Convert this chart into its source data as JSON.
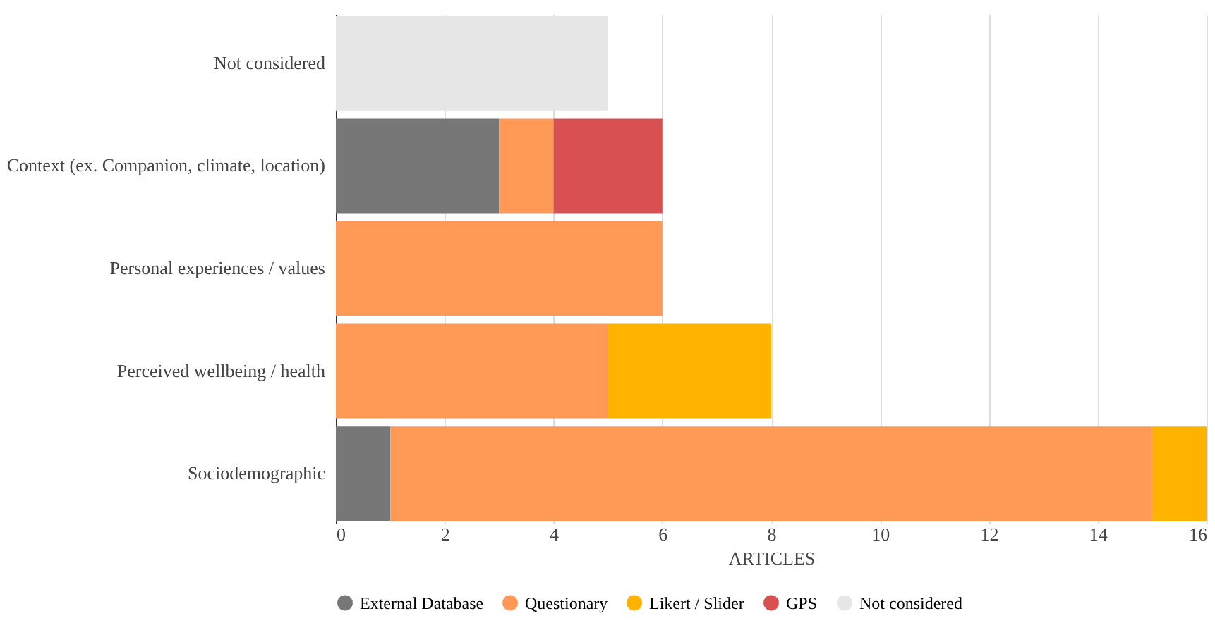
{
  "chart_data": {
    "type": "bar",
    "orientation": "horizontal",
    "stacked": true,
    "xlabel": "ARTICLES",
    "categories": [
      "Not considered",
      "Context (ex. Companion, climate, location)",
      "Personal experiences / values",
      "Perceived wellbeing / health",
      "Sociodemographic"
    ],
    "series": [
      {
        "name": "External Database",
        "color": "#777777",
        "values": [
          null,
          3,
          null,
          null,
          1
        ]
      },
      {
        "name": "Questionary",
        "color": "#ff9955",
        "values": [
          null,
          1,
          6,
          5,
          14
        ]
      },
      {
        "name": "Likert / Slider",
        "color": "#ffb300",
        "values": [
          null,
          null,
          null,
          3,
          1
        ]
      },
      {
        "name": "GPS",
        "color": "#d95050",
        "values": [
          null,
          2,
          null,
          null,
          null
        ]
      },
      {
        "name": "Not considered",
        "color": "#e6e6e6",
        "values": [
          5,
          null,
          null,
          null,
          null
        ]
      }
    ],
    "xlim": [
      0,
      16
    ],
    "xticks": [
      0,
      2,
      4,
      6,
      8,
      10,
      12,
      14,
      16
    ],
    "grid": "x",
    "legend": "bottom"
  }
}
